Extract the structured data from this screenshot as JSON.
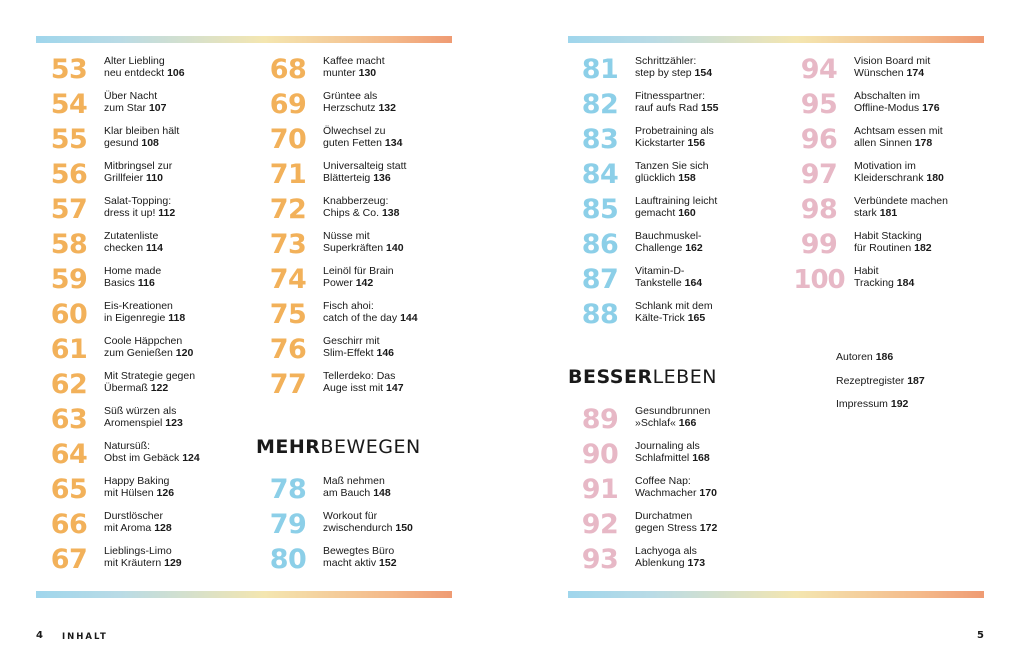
{
  "colors": {
    "orange": "#f2b15a",
    "blue": "#8ccfe8",
    "pink": "#e7b8c6"
  },
  "section_headings": {
    "mehr_bewegen": {
      "bold": "MEHR",
      "regular": "BEWEGEN"
    },
    "besser_leben": {
      "bold": "BESSER",
      "regular": "LEBEN"
    }
  },
  "col1": [
    {
      "num": "53",
      "line1": "Alter Liebling",
      "line2": "neu entdeckt",
      "page": "106"
    },
    {
      "num": "54",
      "line1": "Über Nacht",
      "line2": "zum Star",
      "page": "107"
    },
    {
      "num": "55",
      "line1": "Klar bleiben hält",
      "line2": "gesund",
      "page": "108"
    },
    {
      "num": "56",
      "line1": "Mitbringsel zur",
      "line2": "Grillfeier",
      "page": "110"
    },
    {
      "num": "57",
      "line1": "Salat-Topping:",
      "line2": "dress it up!",
      "page": "112"
    },
    {
      "num": "58",
      "line1": "Zutatenliste",
      "line2": "checken",
      "page": "114"
    },
    {
      "num": "59",
      "line1": "Home made",
      "line2": "Basics",
      "page": "116"
    },
    {
      "num": "60",
      "line1": "Eis-Kreationen",
      "line2": "in Eigenregie",
      "page": "118"
    },
    {
      "num": "61",
      "line1": "Coole Häppchen",
      "line2": "zum Genießen",
      "page": "120"
    },
    {
      "num": "62",
      "line1": "Mit Strategie gegen",
      "line2": "Übermaß",
      "page": "122"
    },
    {
      "num": "63",
      "line1": "Süß würzen als",
      "line2": "Aromenspiel",
      "page": "123"
    },
    {
      "num": "64",
      "line1": "Natursüß:",
      "line2": "Obst im Gebäck",
      "page": "124"
    },
    {
      "num": "65",
      "line1": "Happy Baking",
      "line2": "mit Hülsen",
      "page": "126"
    },
    {
      "num": "66",
      "line1": "Durstlöscher",
      "line2": "mit Aroma",
      "page": "128"
    },
    {
      "num": "67",
      "line1": "Lieblings-Limo",
      "line2": "mit Kräutern",
      "page": "129"
    }
  ],
  "col2a": [
    {
      "num": "68",
      "line1": "Kaffee macht",
      "line2": "munter",
      "page": "130"
    },
    {
      "num": "69",
      "line1": "Grüntee als",
      "line2": "Herzschutz",
      "page": "132"
    },
    {
      "num": "70",
      "line1": "Ölwechsel zu",
      "line2": "guten Fetten",
      "page": "134"
    },
    {
      "num": "71",
      "line1": "Universalteig statt",
      "line2": "Blätterteig",
      "page": "136"
    },
    {
      "num": "72",
      "line1": "Knabberzeug:",
      "line2": "Chips & Co.",
      "page": "138"
    },
    {
      "num": "73",
      "line1": "Nüsse mit",
      "line2": "Superkräften",
      "page": "140"
    },
    {
      "num": "74",
      "line1": "Leinöl für Brain",
      "line2": "Power",
      "page": "142"
    },
    {
      "num": "75",
      "line1": "Fisch ahoi:",
      "line2": "catch of the day",
      "page": "144"
    },
    {
      "num": "76",
      "line1": "Geschirr mit",
      "line2": "Slim-Effekt",
      "page": "146"
    },
    {
      "num": "77",
      "line1": "Tellerdeko: Das",
      "line2": "Auge isst mit",
      "page": "147"
    }
  ],
  "col2b": [
    {
      "num": "78",
      "line1": "Maß nehmen",
      "line2": "am Bauch",
      "page": "148"
    },
    {
      "num": "79",
      "line1": "Workout für",
      "line2": "zwischendurch",
      "page": "150"
    },
    {
      "num": "80",
      "line1": "Bewegtes Büro",
      "line2": "macht aktiv",
      "page": "152"
    }
  ],
  "col3a": [
    {
      "num": "81",
      "line1": "Schrittzähler:",
      "line2": "step by step",
      "page": "154"
    },
    {
      "num": "82",
      "line1": "Fitnesspartner:",
      "line2": "rauf aufs Rad",
      "page": "155"
    },
    {
      "num": "83",
      "line1": "Probetraining als",
      "line2": "Kickstarter",
      "page": "156"
    },
    {
      "num": "84",
      "line1": "Tanzen Sie sich",
      "line2": "glücklich",
      "page": "158"
    },
    {
      "num": "85",
      "line1": "Lauftraining leicht",
      "line2": "gemacht",
      "page": "160"
    },
    {
      "num": "86",
      "line1": "Bauchmuskel-",
      "line2": "Challenge",
      "page": "162"
    },
    {
      "num": "87",
      "line1": "Vitamin-D-",
      "line2": "Tankstelle",
      "page": "164"
    },
    {
      "num": "88",
      "line1": "Schlank mit dem",
      "line2": "Kälte-Trick",
      "page": "165"
    }
  ],
  "col3b": [
    {
      "num": "89",
      "line1": "Gesundbrunnen",
      "line2": "»Schlaf«",
      "page": "166"
    },
    {
      "num": "90",
      "line1": "Journaling als",
      "line2": "Schlafmittel",
      "page": "168"
    },
    {
      "num": "91",
      "line1": "Coffee Nap:",
      "line2": "Wachmacher",
      "page": "170"
    },
    {
      "num": "92",
      "line1": "Durchatmen",
      "line2": "gegen Stress",
      "page": "172"
    },
    {
      "num": "93",
      "line1": "Lachyoga als",
      "line2": "Ablenkung",
      "page": "173"
    }
  ],
  "col4": [
    {
      "num": "94",
      "line1": "Vision Board mit",
      "line2": "Wünschen",
      "page": "174"
    },
    {
      "num": "95",
      "line1": "Abschalten im",
      "line2": "Offline-Modus",
      "page": "176"
    },
    {
      "num": "96",
      "line1": "Achtsam essen mit",
      "line2": "allen Sinnen",
      "page": "178"
    },
    {
      "num": "97",
      "line1": "Motivation im",
      "line2": "Kleiderschrank",
      "page": "180"
    },
    {
      "num": "98",
      "line1": "Verbündete machen",
      "line2": "stark",
      "page": "181"
    },
    {
      "num": "99",
      "line1": "Habit Stacking",
      "line2": "für Routinen ",
      "page": "182"
    },
    {
      "num": "100",
      "line1": "Habit",
      "line2": "Tracking",
      "page": "184"
    }
  ],
  "extras": [
    {
      "label": "Autoren",
      "page": "186"
    },
    {
      "label": "Rezeptregister",
      "page": "187"
    },
    {
      "label": "Impressum",
      "page": "192"
    }
  ],
  "footer": {
    "left_page": "4",
    "left_runner": "INHALT",
    "right_page": "5"
  }
}
